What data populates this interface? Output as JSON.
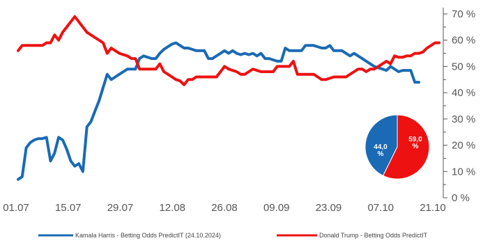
{
  "chart_data": {
    "type": "line",
    "x_labels": [
      "01.07",
      "15.07",
      "29.07",
      "12.08",
      "26.08",
      "09.09",
      "23.09",
      "07.10",
      "21.10"
    ],
    "y_ticks": [
      "0 %",
      "10 %",
      "20 %",
      "30 %",
      "40 %",
      "50 %",
      "60 %",
      "70 %"
    ],
    "ylim": [
      0,
      70
    ],
    "grid": false,
    "legend_position": "bottom",
    "series": [
      {
        "name": "Kamala Harris - Betting Odds PredictIT (24.10.2024)",
        "color": "#1a6ab5",
        "points": [
          [
            0,
            7
          ],
          [
            1,
            8
          ],
          [
            2,
            19
          ],
          [
            3,
            21
          ],
          [
            4,
            22
          ],
          [
            5,
            22.5
          ],
          [
            6,
            22.5
          ],
          [
            7,
            23
          ],
          [
            8,
            14
          ],
          [
            9,
            17
          ],
          [
            10,
            23
          ],
          [
            11,
            22
          ],
          [
            12,
            18.5
          ],
          [
            13,
            14
          ],
          [
            14,
            12
          ],
          [
            15,
            13
          ],
          [
            16,
            10
          ],
          [
            17,
            27
          ],
          [
            18,
            29
          ],
          [
            19,
            33
          ],
          [
            20,
            37
          ],
          [
            21,
            42
          ],
          [
            22,
            47
          ],
          [
            23,
            45
          ],
          [
            24,
            46
          ],
          [
            25,
            47
          ],
          [
            26,
            48
          ],
          [
            27,
            49
          ],
          [
            28,
            49
          ],
          [
            29,
            49
          ],
          [
            30,
            53
          ],
          [
            31,
            54
          ],
          [
            32,
            53.5
          ],
          [
            33,
            53
          ],
          [
            34,
            53
          ],
          [
            35,
            55
          ],
          [
            36,
            56.5
          ],
          [
            37,
            57.5
          ],
          [
            38,
            58.5
          ],
          [
            39,
            59
          ],
          [
            40,
            58
          ],
          [
            41,
            57
          ],
          [
            42,
            57
          ],
          [
            43,
            56.5
          ],
          [
            44,
            56
          ],
          [
            45,
            56
          ],
          [
            46,
            56
          ],
          [
            47,
            53
          ],
          [
            48,
            53
          ],
          [
            49,
            54
          ],
          [
            50,
            55
          ],
          [
            51,
            56
          ],
          [
            52,
            55
          ],
          [
            53,
            56
          ],
          [
            54,
            55
          ],
          [
            55,
            54.5
          ],
          [
            56,
            55
          ],
          [
            57,
            54.5
          ],
          [
            58,
            55
          ],
          [
            59,
            54
          ],
          [
            60,
            55
          ],
          [
            61,
            53
          ],
          [
            62,
            53
          ],
          [
            63,
            52.5
          ],
          [
            64,
            52
          ],
          [
            65,
            52
          ],
          [
            66,
            57
          ],
          [
            67,
            56
          ],
          [
            68,
            56
          ],
          [
            69,
            56
          ],
          [
            70,
            56
          ],
          [
            71,
            58
          ],
          [
            72,
            58
          ],
          [
            73,
            58
          ],
          [
            74,
            57.5
          ],
          [
            75,
            57
          ],
          [
            76,
            57
          ],
          [
            77,
            58
          ],
          [
            78,
            56
          ],
          [
            79,
            56
          ],
          [
            80,
            56
          ],
          [
            81,
            55
          ],
          [
            82,
            54
          ],
          [
            83,
            55
          ],
          [
            84,
            54
          ],
          [
            85,
            53
          ],
          [
            86,
            52
          ],
          [
            87,
            51
          ],
          [
            88,
            50
          ],
          [
            89,
            49.5
          ],
          [
            90,
            49
          ],
          [
            91,
            48.5
          ],
          [
            92,
            50
          ],
          [
            93,
            49
          ],
          [
            94,
            48
          ],
          [
            95,
            48.5
          ],
          [
            96,
            48.5
          ],
          [
            97,
            48.5
          ],
          [
            98,
            44
          ],
          [
            99,
            44
          ]
        ]
      },
      {
        "name": "Donald Trump - Betting Odds PredictIT",
        "color": "#ee1111",
        "points": [
          [
            0,
            56
          ],
          [
            1,
            58
          ],
          [
            2,
            58
          ],
          [
            3,
            58
          ],
          [
            4,
            58
          ],
          [
            5,
            58
          ],
          [
            6,
            58
          ],
          [
            7,
            59
          ],
          [
            8,
            59
          ],
          [
            9,
            62
          ],
          [
            10,
            60
          ],
          [
            11,
            63
          ],
          [
            12,
            65
          ],
          [
            13,
            67
          ],
          [
            14,
            69
          ],
          [
            15,
            67
          ],
          [
            16,
            65
          ],
          [
            17,
            63
          ],
          [
            18,
            62
          ],
          [
            19,
            61
          ],
          [
            20,
            60
          ],
          [
            21,
            59
          ],
          [
            22,
            55
          ],
          [
            23,
            57
          ],
          [
            24,
            56
          ],
          [
            25,
            55
          ],
          [
            26,
            54.5
          ],
          [
            27,
            54
          ],
          [
            28,
            53
          ],
          [
            29,
            53
          ],
          [
            30,
            49
          ],
          [
            31,
            49
          ],
          [
            32,
            49
          ],
          [
            33,
            49
          ],
          [
            34,
            49
          ],
          [
            35,
            51
          ],
          [
            36,
            48
          ],
          [
            37,
            47
          ],
          [
            38,
            46
          ],
          [
            39,
            45
          ],
          [
            40,
            44.5
          ],
          [
            41,
            43
          ],
          [
            42,
            45
          ],
          [
            43,
            45
          ],
          [
            44,
            46
          ],
          [
            45,
            46
          ],
          [
            46,
            46
          ],
          [
            47,
            46
          ],
          [
            48,
            46
          ],
          [
            49,
            46
          ],
          [
            50,
            48
          ],
          [
            51,
            50
          ],
          [
            52,
            49
          ],
          [
            53,
            48.5
          ],
          [
            54,
            48
          ],
          [
            55,
            47
          ],
          [
            56,
            47
          ],
          [
            57,
            48
          ],
          [
            58,
            49
          ],
          [
            59,
            48.5
          ],
          [
            60,
            48
          ],
          [
            61,
            48
          ],
          [
            62,
            48
          ],
          [
            63,
            48
          ],
          [
            64,
            50
          ],
          [
            65,
            50
          ],
          [
            66,
            50
          ],
          [
            67,
            50
          ],
          [
            68,
            52
          ],
          [
            69,
            47
          ],
          [
            70,
            47
          ],
          [
            71,
            47
          ],
          [
            72,
            47
          ],
          [
            73,
            47
          ],
          [
            74,
            46
          ],
          [
            75,
            45
          ],
          [
            76,
            45
          ],
          [
            77,
            45.5
          ],
          [
            78,
            46
          ],
          [
            79,
            46
          ],
          [
            80,
            46
          ],
          [
            81,
            46
          ],
          [
            82,
            47
          ],
          [
            83,
            48
          ],
          [
            84,
            49
          ],
          [
            85,
            49
          ],
          [
            86,
            48
          ],
          [
            87,
            49
          ],
          [
            88,
            49
          ],
          [
            89,
            50
          ],
          [
            90,
            51
          ],
          [
            91,
            52
          ],
          [
            92,
            51
          ],
          [
            93,
            54
          ],
          [
            94,
            53.5
          ],
          [
            95,
            53.5
          ],
          [
            96,
            54
          ],
          [
            97,
            54
          ],
          [
            98,
            55
          ],
          [
            99,
            55
          ],
          [
            100,
            55.5
          ],
          [
            101,
            57
          ],
          [
            102,
            58
          ],
          [
            103,
            59
          ],
          [
            104,
            59
          ]
        ]
      }
    ],
    "pie": {
      "slices": [
        {
          "label": "44,0\n%",
          "value": 44.0,
          "color": "#1a6ab5"
        },
        {
          "label": "59,0\n%",
          "value": 59.0,
          "color": "#ee1111"
        }
      ]
    }
  }
}
